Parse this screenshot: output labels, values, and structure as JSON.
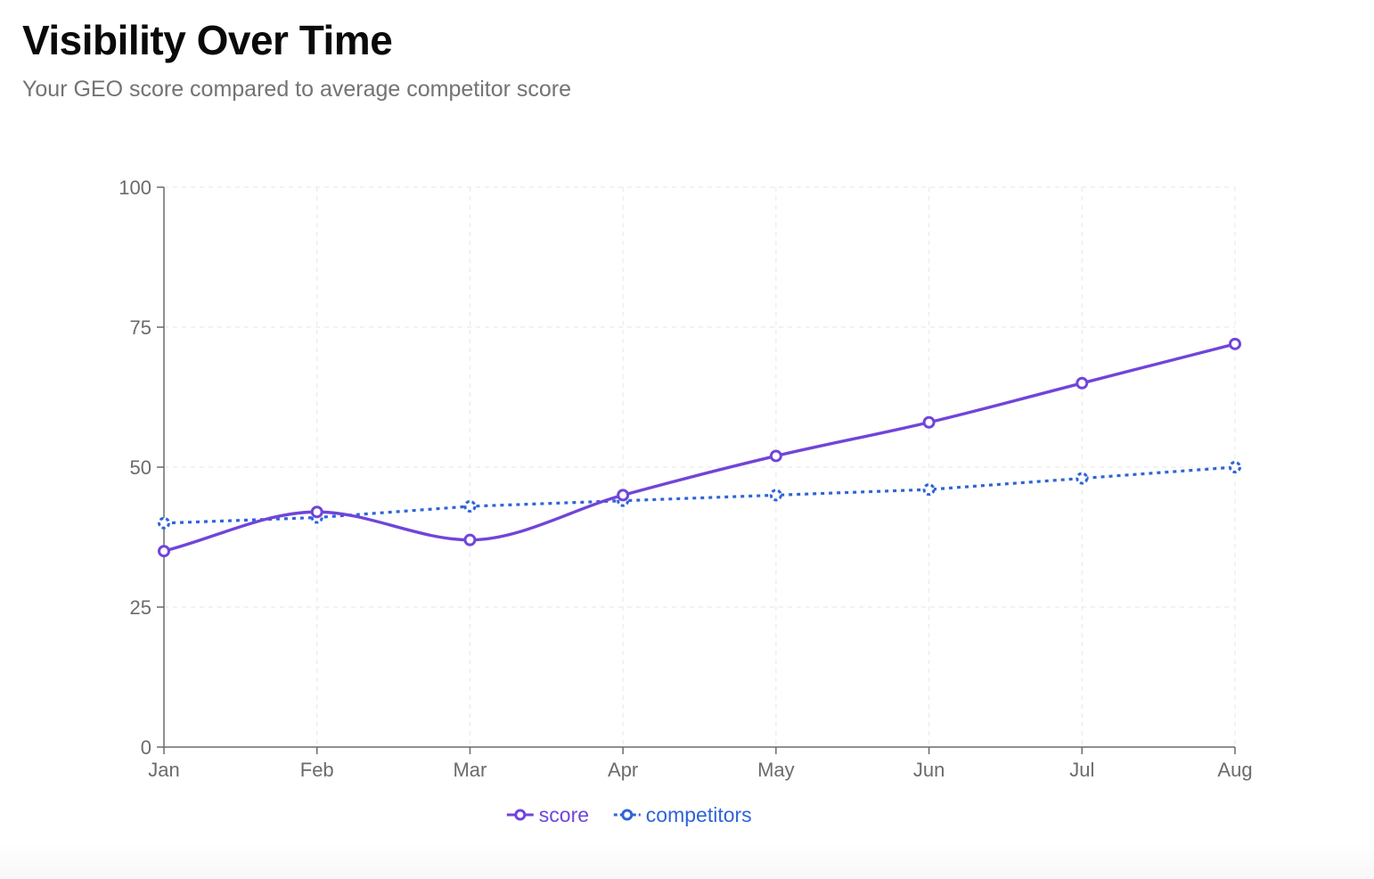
{
  "header": {
    "title": "Visibility Over Time",
    "subtitle": "Your GEO score compared to average competitor score"
  },
  "chart_data": {
    "type": "line",
    "title": "Visibility Over Time",
    "subtitle": "Your GEO score compared to average competitor score",
    "categories": [
      "Jan",
      "Feb",
      "Mar",
      "Apr",
      "May",
      "Jun",
      "Jul",
      "Aug"
    ],
    "series": [
      {
        "name": "score",
        "values": [
          35,
          42,
          37,
          45,
          52,
          58,
          65,
          72
        ],
        "color": "#7045d9",
        "style": "solid",
        "curve": "smooth"
      },
      {
        "name": "competitors",
        "values": [
          40,
          41,
          43,
          44,
          45,
          46,
          48,
          50
        ],
        "color": "#2f64d8",
        "style": "dotted",
        "curve": "linear"
      }
    ],
    "ylim": [
      0,
      100
    ],
    "yticks": [
      "0",
      "25",
      "50",
      "75",
      "100"
    ],
    "xlabel": "",
    "ylabel": "",
    "grid": true,
    "legend": "bottom-center"
  }
}
